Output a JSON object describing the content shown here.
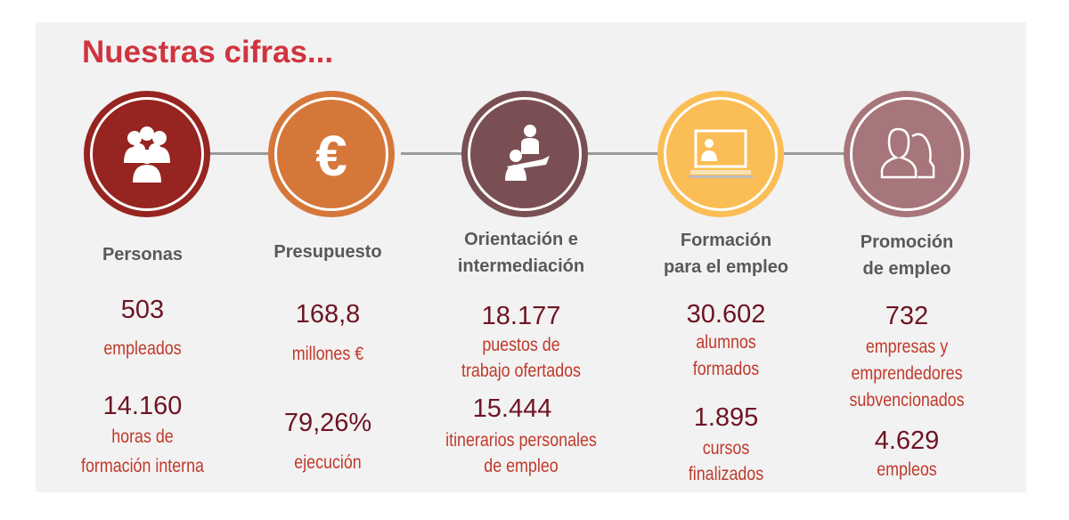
{
  "title": "Nuestras cifras...",
  "colors": {
    "c1": "#962420",
    "c2": "#d6773a",
    "c3": "#7a4f53",
    "c4": "#fbbd55",
    "c5": "#a7767a"
  },
  "columns": [
    {
      "icon": "people-group-icon",
      "heading": [
        "Personas"
      ],
      "stats": [
        {
          "value": "503",
          "label": [
            "empleados"
          ]
        },
        {
          "value": "14.160",
          "label": [
            "horas de",
            "formación interna"
          ]
        }
      ]
    },
    {
      "icon": "euro-icon",
      "heading": [
        "Presupuesto"
      ],
      "stats": [
        {
          "value": "168,8",
          "label": [
            "millones €"
          ]
        },
        {
          "value": "79,26%",
          "label": [
            "ejecución"
          ]
        }
      ]
    },
    {
      "icon": "interview-icon",
      "heading": [
        "Orientación e",
        "intermediación"
      ],
      "stats": [
        {
          "value": "18.177",
          "label": [
            "puestos de",
            "trabajo ofertados"
          ]
        },
        {
          "value": "15.444",
          "label": [
            "itinerarios personales",
            "de empleo"
          ]
        }
      ]
    },
    {
      "icon": "laptop-training-icon",
      "heading": [
        "Formación",
        "para el empleo"
      ],
      "stats": [
        {
          "value": "30.602",
          "label": [
            "alumnos",
            "formados"
          ]
        },
        {
          "value": "1.895",
          "label": [
            "cursos",
            "finalizados"
          ]
        }
      ]
    },
    {
      "icon": "man-woman-icon",
      "heading": [
        "Promoción",
        "de empleo"
      ],
      "stats": [
        {
          "value": "732",
          "label": [
            "empresas y",
            "emprendedores",
            "subvencionados"
          ]
        },
        {
          "value": "4.629",
          "label": [
            "empleos"
          ]
        }
      ]
    }
  ]
}
